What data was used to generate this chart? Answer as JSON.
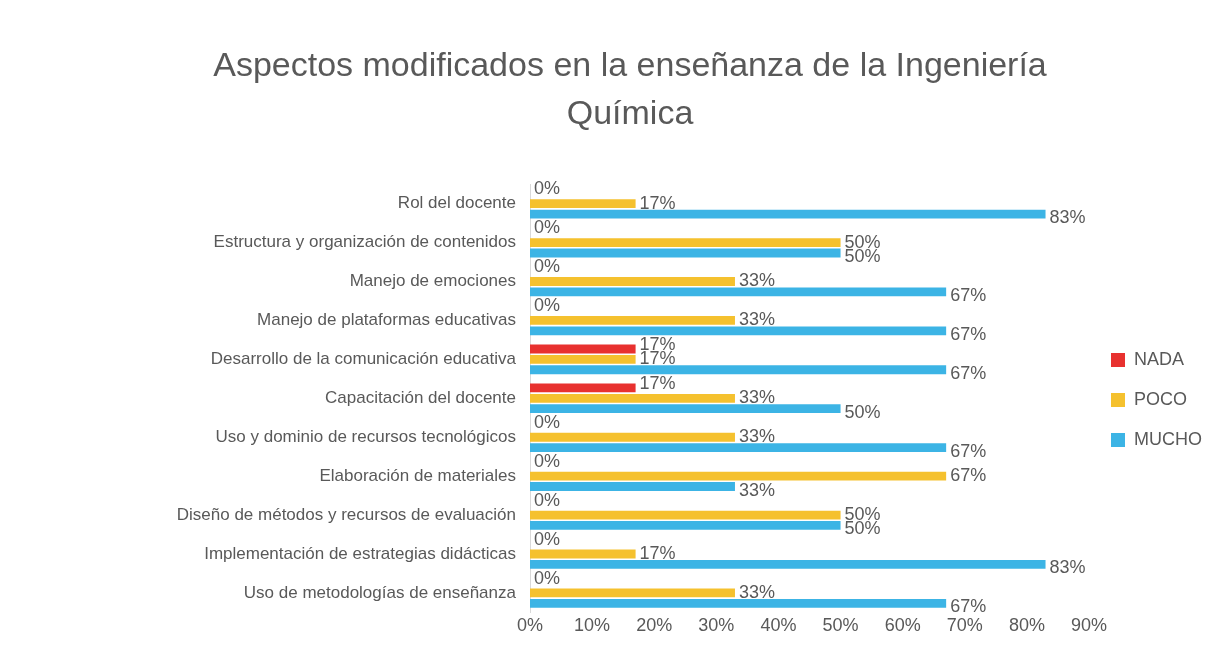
{
  "chart_data": {
    "type": "bar",
    "orientation": "horizontal",
    "title": "Aspectos modificados en la enseñanza de la Ingeniería Química",
    "categories": [
      "Rol del docente",
      "Estructura y organización de contenidos",
      "Manejo de emociones",
      "Manejo de plataformas educativas",
      "Desarrollo de la comunicación educativa",
      "Capacitación del docente",
      "Uso y dominio de recursos tecnológicos",
      "Elaboración de materiales",
      "Diseño de métodos y recursos de evaluación",
      "Implementación de estrategias didácticas",
      "Uso de metodologías de enseñanza"
    ],
    "series": [
      {
        "name": "NADA",
        "color": "#e8312f",
        "values": [
          0,
          0,
          0,
          0,
          17,
          17,
          0,
          0,
          0,
          0,
          0
        ],
        "value_labels": [
          "0%",
          "0%",
          "0%",
          "0%",
          "17%",
          "17%",
          "0%",
          "0%",
          "0%",
          "0%",
          "0%"
        ]
      },
      {
        "name": "POCO",
        "color": "#f5c12e",
        "values": [
          17,
          50,
          33,
          33,
          17,
          33,
          33,
          67,
          50,
          17,
          33
        ],
        "value_labels": [
          "17%",
          "50%",
          "33%",
          "33%",
          "17%",
          "33%",
          "33%",
          "67%",
          "50%",
          "17%",
          "33%"
        ]
      },
      {
        "name": "MUCHO",
        "color": "#3cb4e5",
        "values": [
          83,
          50,
          67,
          67,
          67,
          50,
          67,
          33,
          50,
          83,
          67
        ],
        "value_labels": [
          "83%",
          "50%",
          "67%",
          "67%",
          "67%",
          "50%",
          "67%",
          "33%",
          "50%",
          "83%",
          "67%"
        ]
      }
    ],
    "xlim": [
      0,
      90
    ],
    "xticks": [
      {
        "value": 0,
        "label": "0%"
      },
      {
        "value": 10,
        "label": "10%"
      },
      {
        "value": 20,
        "label": "20%"
      },
      {
        "value": 30,
        "label": "30%"
      },
      {
        "value": 40,
        "label": "40%"
      },
      {
        "value": 50,
        "label": "50%"
      },
      {
        "value": 60,
        "label": "60%"
      },
      {
        "value": 70,
        "label": "70%"
      },
      {
        "value": 80,
        "label": "80%"
      },
      {
        "value": 90,
        "label": "90%"
      }
    ],
    "grid": false,
    "legend": "right"
  }
}
